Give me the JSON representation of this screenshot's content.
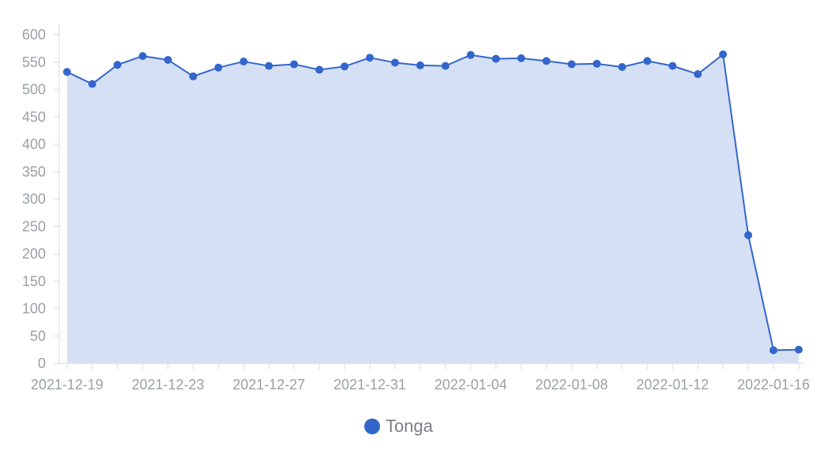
{
  "chart_data": {
    "type": "area",
    "series": [
      {
        "name": "Tonga",
        "x": [
          "2021-12-19",
          "2021-12-20",
          "2021-12-21",
          "2021-12-22",
          "2021-12-23",
          "2021-12-24",
          "2021-12-25",
          "2021-12-26",
          "2021-12-27",
          "2021-12-28",
          "2021-12-29",
          "2021-12-30",
          "2021-12-31",
          "2022-01-01",
          "2022-01-02",
          "2022-01-03",
          "2022-01-04",
          "2022-01-05",
          "2022-01-06",
          "2022-01-07",
          "2022-01-08",
          "2022-01-09",
          "2022-01-10",
          "2022-01-11",
          "2022-01-12",
          "2022-01-13",
          "2022-01-14",
          "2022-01-15",
          "2022-01-16",
          "2022-01-17"
        ],
        "values": [
          532,
          510,
          545,
          561,
          554,
          524,
          540,
          551,
          543,
          546,
          536,
          542,
          558,
          549,
          544,
          543,
          563,
          556,
          557,
          552,
          546,
          547,
          541,
          552,
          543,
          528,
          564,
          234,
          24,
          25
        ]
      }
    ],
    "x_tick_labels": [
      "2021-12-19",
      "2021-12-23",
      "2021-12-27",
      "2021-12-31",
      "2022-01-04",
      "2022-01-08",
      "2022-01-12",
      "2022-01-16"
    ],
    "y_ticks": [
      0,
      50,
      100,
      150,
      200,
      250,
      300,
      350,
      400,
      450,
      500,
      550,
      600
    ],
    "ylim": [
      0,
      600
    ],
    "title": "",
    "xlabel": "",
    "ylabel": "",
    "legend_position": "bottom-center",
    "colors": {
      "line": "#3366cc",
      "fill": "#d6e0f5",
      "axis": "#e6e6e6",
      "tick_text": "#9aa0a6"
    }
  },
  "legend": {
    "label": "Tonga"
  }
}
